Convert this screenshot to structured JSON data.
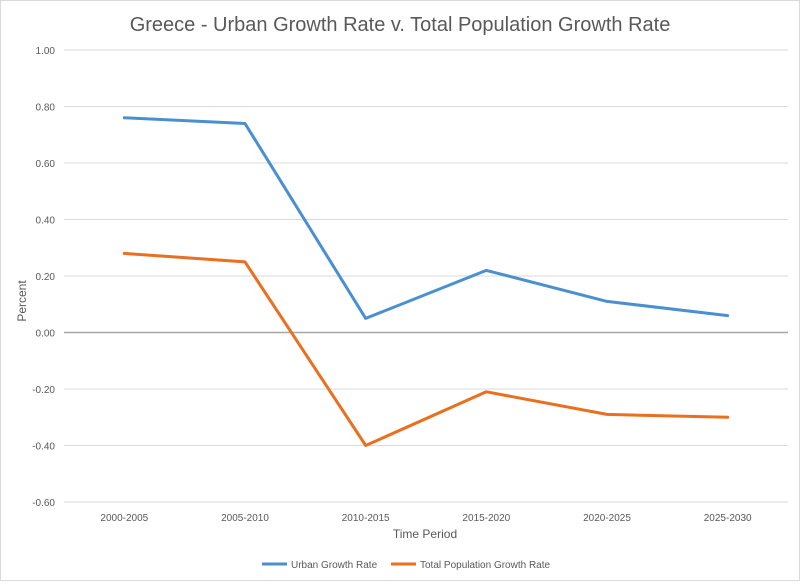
{
  "chart_data": {
    "type": "line",
    "title": "Greece - Urban Growth Rate v. Total Population Growth Rate",
    "xlabel": "Time Period",
    "ylabel": "Percent",
    "categories": [
      "2000-2005",
      "2005-2010",
      "2010-2015",
      "2015-2020",
      "2020-2025",
      "2025-2030"
    ],
    "ylim": [
      -0.6,
      1.0
    ],
    "yticks": [
      "1.00",
      "0.80",
      "0.60",
      "0.40",
      "0.20",
      "0.00",
      "-0.20",
      "-0.40",
      "-0.60"
    ],
    "ytick_values": [
      1.0,
      0.8,
      0.6,
      0.4,
      0.2,
      0.0,
      -0.2,
      -0.4,
      -0.6
    ],
    "grid": true,
    "legend_position": "bottom",
    "series": [
      {
        "name": "Urban Growth Rate",
        "color": "#4a8fd0",
        "values": [
          0.76,
          0.74,
          0.05,
          0.22,
          0.11,
          0.06
        ]
      },
      {
        "name": "Total Population Growth Rate",
        "color": "#ea6f1f",
        "values": [
          0.28,
          0.25,
          -0.4,
          -0.21,
          -0.29,
          -0.3
        ]
      }
    ]
  }
}
